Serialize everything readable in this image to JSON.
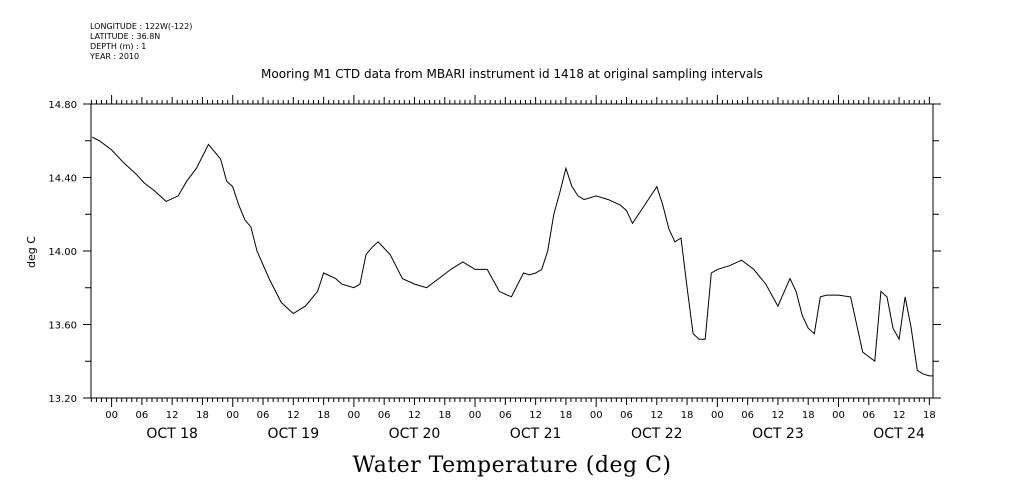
{
  "meta": {
    "longitude": "LONGITUDE : 122W(-122)",
    "latitude": "LATITUDE : 36.8N",
    "depth": "DEPTH (m) : 1",
    "year": "YEAR : 2010"
  },
  "chart_data": {
    "type": "line",
    "title": "Mooring M1 CTD data from MBARI instrument id 1418 at original sampling intervals",
    "xlabel": "Water Temperature (deg C)",
    "ylabel": "deg C",
    "ylim": [
      13.2,
      14.8
    ],
    "yticks": [
      "14.80",
      "14.40",
      "14.00",
      "13.60",
      "13.20"
    ],
    "xlim_days": [
      17.83,
      24.78
    ],
    "hour_ticks": [
      "00",
      "06",
      "12",
      "18"
    ],
    "day_labels": [
      "OCT 18",
      "OCT 19",
      "OCT 20",
      "OCT 21",
      "OCT 22",
      "OCT 23",
      "OCT 24"
    ],
    "grid": false,
    "series": [
      {
        "x": [
          17.84,
          17.9,
          18.0,
          18.1,
          18.2,
          18.27,
          18.35,
          18.45,
          18.55,
          18.62,
          18.7,
          18.8,
          18.9,
          18.95,
          19.0,
          19.05,
          19.1,
          19.15,
          19.2,
          19.3,
          19.4,
          19.5,
          19.6,
          19.7,
          19.75,
          19.85,
          19.9,
          20.0,
          20.05,
          20.1,
          20.15,
          20.2,
          20.3,
          20.4,
          20.5,
          20.6,
          20.7,
          20.8,
          20.9,
          20.95,
          21.0,
          21.1,
          21.2,
          21.3,
          21.4,
          21.45,
          21.5,
          21.55,
          21.6,
          21.65,
          21.7,
          21.75,
          21.8,
          21.85,
          21.9,
          22.0,
          22.1,
          22.2,
          22.25,
          22.3,
          22.4,
          22.45,
          22.5,
          22.55,
          22.6,
          22.65,
          22.7,
          22.75,
          22.8,
          22.85,
          22.9,
          22.95,
          23.0,
          23.1,
          23.2,
          23.3,
          23.4,
          23.5,
          23.6,
          23.65,
          23.7,
          23.75,
          23.8,
          23.85,
          23.9,
          23.95,
          24.0,
          24.1,
          24.2,
          24.3,
          24.35,
          24.4,
          24.45,
          24.5,
          24.55,
          24.6,
          24.65,
          24.7,
          24.75,
          24.78
        ],
        "y": [
          14.62,
          14.6,
          14.55,
          14.48,
          14.42,
          14.37,
          14.33,
          14.27,
          14.3,
          14.38,
          14.45,
          14.58,
          14.5,
          14.38,
          14.35,
          14.25,
          14.17,
          14.13,
          14.0,
          13.85,
          13.72,
          13.66,
          13.7,
          13.78,
          13.88,
          13.85,
          13.82,
          13.8,
          13.82,
          13.98,
          14.02,
          14.05,
          13.98,
          13.85,
          13.82,
          13.8,
          13.85,
          13.9,
          13.94,
          13.92,
          13.9,
          13.9,
          13.78,
          13.75,
          13.88,
          13.87,
          13.88,
          13.9,
          14.0,
          14.2,
          14.32,
          14.45,
          14.35,
          14.3,
          14.28,
          14.3,
          14.28,
          14.25,
          14.22,
          14.15,
          14.25,
          14.3,
          14.35,
          14.25,
          14.12,
          14.05,
          14.07,
          13.8,
          13.55,
          13.52,
          13.52,
          13.88,
          13.9,
          13.92,
          13.95,
          13.9,
          13.82,
          13.7,
          13.85,
          13.78,
          13.65,
          13.58,
          13.55,
          13.75,
          13.76,
          13.76,
          13.76,
          13.75,
          13.45,
          13.4,
          13.78,
          13.75,
          13.58,
          13.52,
          13.75,
          13.58,
          13.35,
          13.33,
          13.32,
          13.32
        ]
      }
    ]
  }
}
